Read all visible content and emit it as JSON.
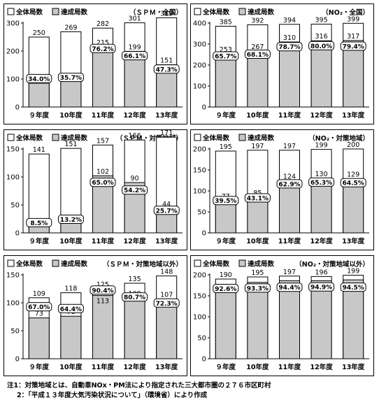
{
  "legend_labels": {
    "total": "全体局数",
    "achieved": "達成局数"
  },
  "colors": {
    "total": "#ffffff",
    "achieved": "#c8c8c8",
    "stroke": "#000000"
  },
  "notes": [
    "注1：対策地域とは、自動車NOx・PM法により指定された三大都市圏の２７６市区町村",
    "2：「平成１３年度大気汚染状況について」（環境省）により作成"
  ],
  "chart_data": [
    {
      "type": "bar",
      "title": "（ＳＰＭ・全国）",
      "categories": [
        "９年度",
        "10年度",
        "11年度",
        "12年度",
        "13年度"
      ],
      "ylim": [
        0,
        300
      ],
      "yticks": [
        0,
        100,
        200,
        300
      ],
      "series": [
        {
          "name": "全体局数",
          "values": [
            250,
            269,
            282,
            301,
            319
          ]
        },
        {
          "name": "達成局数",
          "values": [
            85,
            96,
            215,
            199,
            151
          ]
        }
      ],
      "percent_labels": [
        "34.0%",
        "35.7%",
        "76.2%",
        "66.1%",
        "47.3%"
      ],
      "percent_values": [
        34.0,
        35.7,
        76.2,
        66.1,
        47.3
      ]
    },
    {
      "type": "bar",
      "title": "（NO₂・全国）",
      "categories": [
        "９年度",
        "10年度",
        "11年度",
        "12年度",
        "13年度"
      ],
      "ylim": [
        0,
        400
      ],
      "yticks": [
        0,
        100,
        200,
        300,
        400
      ],
      "series": [
        {
          "name": "全体局数",
          "values": [
            385,
            392,
            394,
            395,
            399
          ]
        },
        {
          "name": "達成局数",
          "values": [
            253,
            267,
            310,
            316,
            317
          ]
        }
      ],
      "percent_labels": [
        "65.7%",
        "68.1%",
        "78.7%",
        "80.0%",
        "79.4%"
      ],
      "percent_values": [
        65.7,
        68.1,
        78.7,
        80.0,
        79.4
      ]
    },
    {
      "type": "bar",
      "title": "（ＳＰＭ・対策地域）",
      "categories": [
        "９年度",
        "10年度",
        "11年度",
        "12年度",
        "13年度"
      ],
      "ylim": [
        0,
        150
      ],
      "yticks": [
        0,
        50,
        100,
        150
      ],
      "series": [
        {
          "name": "全体局数",
          "values": [
            141,
            151,
            157,
            166,
            171
          ]
        },
        {
          "name": "達成局数",
          "values": [
            12,
            20,
            102,
            90,
            44
          ]
        }
      ],
      "percent_labels": [
        "8.5%",
        "13.2%",
        "65.0%",
        "54.2%",
        "25.7%"
      ],
      "percent_values": [
        8.5,
        13.2,
        65.0,
        54.2,
        25.7
      ]
    },
    {
      "type": "bar",
      "title": "（NO₂・対策地域）",
      "categories": [
        "９年度",
        "10年度",
        "11年度",
        "12年度",
        "13年度"
      ],
      "ylim": [
        0,
        200
      ],
      "yticks": [
        0,
        50,
        100,
        150,
        200
      ],
      "series": [
        {
          "name": "全体局数",
          "values": [
            195,
            197,
            197,
            199,
            200
          ]
        },
        {
          "name": "達成局数",
          "values": [
            77,
            85,
            124,
            130,
            129
          ]
        }
      ],
      "percent_labels": [
        "39.5%",
        "43.1%",
        "62.9%",
        "65.3%",
        "64.5%"
      ],
      "percent_values": [
        39.5,
        43.1,
        62.9,
        65.3,
        64.5
      ]
    },
    {
      "type": "bar",
      "title": "（ＳＰＭ・対策地域以外）",
      "categories": [
        "９年度",
        "10年度",
        "11年度",
        "12年度",
        "13年度"
      ],
      "ylim": [
        0,
        150
      ],
      "yticks": [
        0,
        50,
        100,
        150
      ],
      "series": [
        {
          "name": "全体局数",
          "values": [
            109,
            118,
            125,
            135,
            148
          ]
        },
        {
          "name": "達成局数",
          "values": [
            73,
            76,
            113,
            109,
            107
          ]
        }
      ],
      "percent_labels": [
        "67.0%",
        "64.4%",
        "90.4%",
        "80.7%",
        "72.3%"
      ],
      "percent_values": [
        67.0,
        64.4,
        90.4,
        80.7,
        72.3
      ]
    },
    {
      "type": "bar",
      "title": "（NO₂・対策地域以外）",
      "categories": [
        "９年度",
        "10年度",
        "11年度",
        "12年度",
        "13年度"
      ],
      "ylim": [
        0,
        200
      ],
      "yticks": [
        0,
        50,
        100,
        150,
        200
      ],
      "series": [
        {
          "name": "全体局数",
          "values": [
            190,
            195,
            197,
            196,
            199
          ]
        },
        {
          "name": "達成局数",
          "values": [
            176,
            182,
            186,
            186,
            188
          ]
        }
      ],
      "percent_labels": [
        "92.6%",
        "93.3%",
        "94.4%",
        "94.9%",
        "94.5%"
      ],
      "percent_values": [
        92.6,
        93.3,
        94.4,
        94.9,
        94.5
      ]
    }
  ]
}
